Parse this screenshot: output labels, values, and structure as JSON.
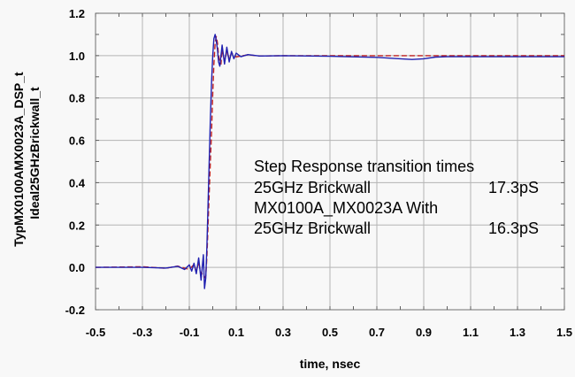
{
  "chart_data": {
    "type": "line",
    "title": "",
    "xlabel": "time, nsec",
    "ylabels": [
      "TypMX0100AMX0023A_DSP_t",
      "Ideal25GHzBrickwall_t"
    ],
    "xlim": [
      -0.5,
      1.5
    ],
    "ylim": [
      -0.2,
      1.2
    ],
    "x_ticks": [
      -0.5,
      -0.3,
      -0.1,
      0.1,
      0.3,
      0.5,
      0.7,
      0.9,
      1.1,
      1.3,
      1.5
    ],
    "x_tick_labels": [
      "-0.5",
      "-0.3",
      "-0.1",
      "0.1",
      "0.3",
      "0.5",
      "0.7",
      "0.9",
      "1.1",
      "1.3",
      "1.5"
    ],
    "y_ticks": [
      -0.2,
      0.0,
      0.2,
      0.4,
      0.6,
      0.8,
      1.0,
      1.2
    ],
    "y_tick_labels": [
      "-0.2",
      "0.0",
      "0.2",
      "0.4",
      "0.6",
      "0.8",
      "1.0",
      "1.2"
    ],
    "grid": true,
    "series": [
      {
        "name": "TypMX0100AMX0023A_DSP_t",
        "color": "#2020b0",
        "style": "solid",
        "x": [
          -0.5,
          -0.3,
          -0.2,
          -0.15,
          -0.12,
          -0.1,
          -0.09,
          -0.08,
          -0.07,
          -0.06,
          -0.05,
          -0.04,
          -0.035,
          -0.03,
          -0.025,
          -0.02,
          -0.015,
          -0.01,
          -0.005,
          0.0,
          0.005,
          0.01,
          0.015,
          0.02,
          0.025,
          0.03,
          0.04,
          0.05,
          0.06,
          0.07,
          0.08,
          0.09,
          0.1,
          0.12,
          0.15,
          0.2,
          0.3,
          0.5,
          0.7,
          0.8,
          0.85,
          0.9,
          0.95,
          1.0,
          1.2,
          1.5
        ],
        "y": [
          0.0,
          0.0,
          -0.003,
          0.005,
          -0.01,
          0.012,
          -0.018,
          0.02,
          -0.03,
          0.045,
          -0.06,
          0.06,
          -0.1,
          -0.05,
          0.1,
          0.3,
          0.5,
          0.7,
          0.88,
          1.0,
          1.08,
          1.1,
          1.07,
          1.03,
          0.97,
          0.95,
          1.05,
          0.96,
          1.04,
          0.97,
          1.02,
          0.985,
          1.012,
          0.995,
          1.005,
          0.998,
          1.0,
          0.997,
          0.992,
          0.985,
          0.982,
          0.985,
          0.993,
          0.995,
          0.995,
          0.995
        ]
      },
      {
        "name": "Ideal25GHzBrickwall_t",
        "color": "#c02020",
        "style": "dashed",
        "x": [
          -0.5,
          -0.3,
          -0.2,
          -0.15,
          -0.1,
          -0.08,
          -0.07,
          -0.06,
          -0.05,
          -0.045,
          -0.04,
          -0.035,
          -0.03,
          -0.025,
          -0.02,
          -0.015,
          -0.01,
          -0.005,
          0.0,
          0.005,
          0.01,
          0.015,
          0.02,
          0.025,
          0.03,
          0.035,
          0.04,
          0.05,
          0.06,
          0.07,
          0.08,
          0.1,
          0.15,
          0.2,
          0.3,
          0.5,
          1.0,
          1.5
        ],
        "y": [
          0.0,
          0.003,
          -0.004,
          0.006,
          -0.01,
          0.014,
          -0.018,
          0.025,
          -0.035,
          -0.03,
          -0.04,
          -0.05,
          -0.04,
          0.05,
          0.2,
          0.35,
          0.5,
          0.65,
          0.82,
          0.96,
          1.06,
          1.09,
          1.06,
          1.0,
          0.97,
          0.96,
          1.03,
          0.975,
          1.02,
          0.985,
          1.012,
          0.994,
          1.004,
          0.998,
          1.0,
          1.0,
          1.0,
          1.0
        ]
      }
    ],
    "annotation": {
      "lines": [
        [
          "Step Response transition times",
          ""
        ],
        [
          "25GHz Brickwall",
          "17.3pS"
        ],
        [
          "MX0100A_MX0023A With",
          ""
        ],
        [
          "25GHz Brickwall",
          "16.3pS"
        ]
      ]
    }
  }
}
